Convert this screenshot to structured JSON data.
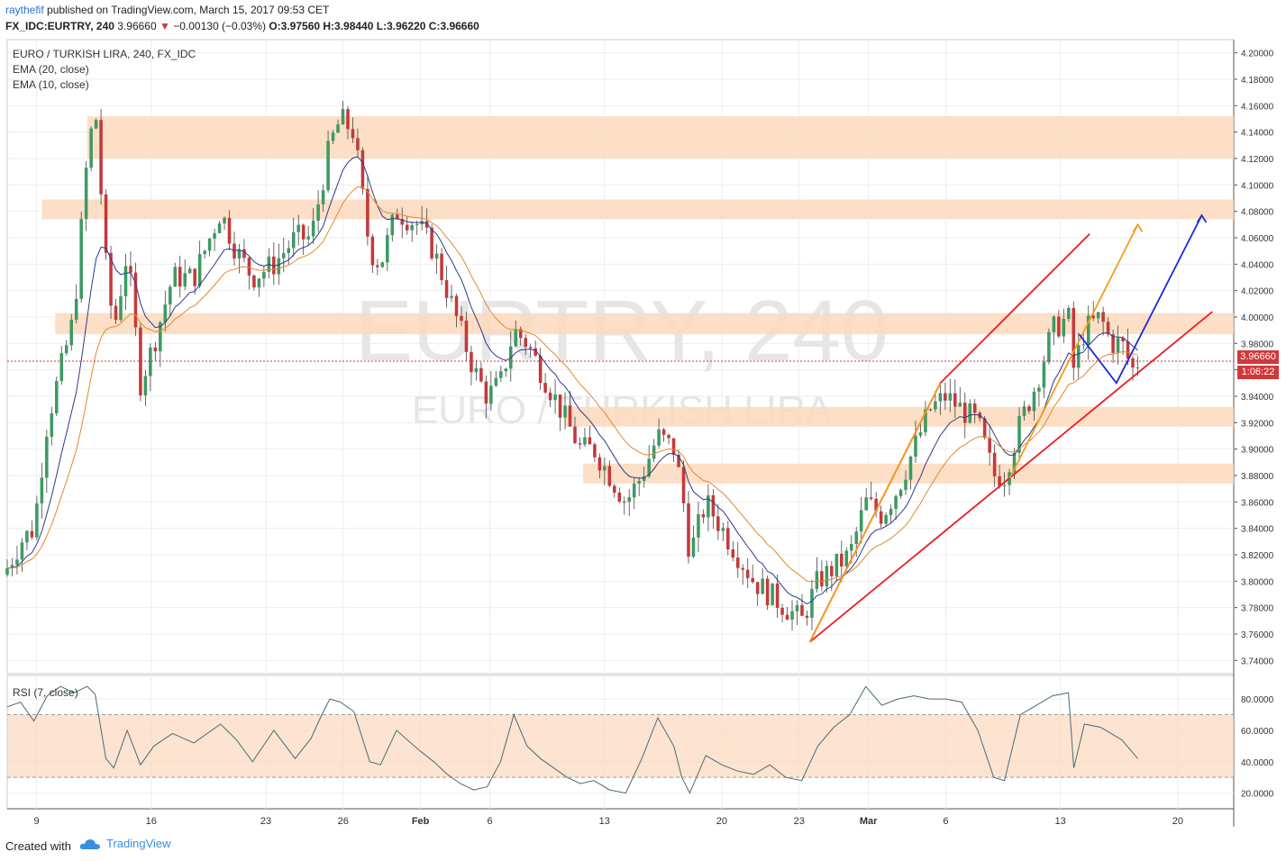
{
  "header": {
    "author": "raythefif",
    "published": "published on TradingView.com, March 15, 2017 09:53 CET",
    "symbol": "FX_IDC:EURTRY, 240",
    "last": "3.96660",
    "change": "−0.00130 (−0.03%)",
    "ohlc": "O:3.97560 H:3.98440 L:3.96220 C:3.96660"
  },
  "legend": {
    "title": "EURO / TURKISH LIRA, 240, FX_IDC",
    "ema20": "EMA (20, close)",
    "ema10": "EMA (10, close)",
    "rsi": "RSI (7, close)"
  },
  "watermark": {
    "big": "EURTRY, 240",
    "small": "EURO / TURKISH LIRA"
  },
  "price_tag": {
    "price": "3.96660",
    "timer": "1:06:22"
  },
  "footer": {
    "created": "Created with",
    "brand": "TradingView"
  },
  "colors": {
    "up": "#3d9a63",
    "down": "#c4393a",
    "ema10": "#2d3a8c",
    "ema20": "#e08a2e",
    "zone": "#fbd9bc",
    "red_line": "#ee1c24",
    "orange_line": "#f59b1e",
    "blue_line": "#1a2bd6",
    "rsi": "#4a6b76"
  },
  "chart_data": [
    {
      "type": "candlestick",
      "title": "EURO / TURKISH LIRA, 240, FX_IDC",
      "ylim": [
        3.73,
        4.21
      ],
      "y_ticks": [
        "3.74000",
        "3.76000",
        "3.78000",
        "3.80000",
        "3.82000",
        "3.84000",
        "3.86000",
        "3.88000",
        "3.90000",
        "3.92000",
        "3.94000",
        "3.96000",
        "3.98000",
        "4.00000",
        "4.02000",
        "4.04000",
        "4.06000",
        "4.08000",
        "4.10000",
        "4.12000",
        "4.14000",
        "4.16000",
        "4.18000",
        "4.20000"
      ],
      "x_ticks": [
        "9",
        "16",
        "23",
        "26",
        "Feb",
        "6",
        "13",
        "20",
        "23",
        "Mar",
        "6",
        "13",
        "20"
      ],
      "bars_index_range": [
        0,
        229
      ],
      "x_tick_index": [
        11,
        54,
        97,
        126,
        155,
        181,
        224,
        268,
        297,
        323,
        352,
        395,
        439
      ],
      "support_resistance_zones": [
        {
          "low": 4.12,
          "high": 4.152,
          "from": 30
        },
        {
          "low": 4.074,
          "high": 4.089,
          "from": 13
        },
        {
          "low": 3.987,
          "high": 4.003,
          "from": 18
        },
        {
          "low": 3.917,
          "high": 3.932,
          "from": 209
        },
        {
          "low": 3.874,
          "high": 3.889,
          "from": 216
        }
      ],
      "trendlines": [
        {
          "color": "red",
          "points": [
            [
              301,
              3.754
            ],
            [
              350,
              3.95
            ],
            [
              406,
              4.063
            ]
          ]
        },
        {
          "color": "red",
          "points": [
            [
              301,
              3.754
            ],
            [
              452,
              4.004
            ]
          ]
        },
        {
          "color": "orange",
          "points": [
            [
              301,
              3.754
            ],
            [
              350,
              3.95
            ]
          ]
        },
        {
          "color": "orange",
          "points": [
            [
              376,
              3.878
            ],
            [
              424,
              4.07
            ]
          ]
        },
        {
          "color": "blue",
          "points": [
            [
              402,
              3.987
            ],
            [
              416,
              3.95
            ],
            [
              448,
              4.077
            ]
          ]
        }
      ],
      "close_path": [
        [
          0,
          3.81
        ],
        [
          5,
          3.83
        ],
        [
          10,
          3.84
        ],
        [
          15,
          3.92
        ],
        [
          20,
          3.96
        ],
        [
          25,
          4.0
        ],
        [
          30,
          4.12
        ],
        [
          33,
          4.16
        ],
        [
          37,
          4.04
        ],
        [
          40,
          3.99
        ],
        [
          45,
          4.05
        ],
        [
          50,
          3.95
        ],
        [
          55,
          3.98
        ],
        [
          62,
          4.03
        ],
        [
          70,
          4.03
        ],
        [
          80,
          4.08
        ],
        [
          86,
          4.05
        ],
        [
          92,
          4.03
        ],
        [
          100,
          4.04
        ],
        [
          108,
          4.06
        ],
        [
          114,
          4.06
        ],
        [
          118,
          4.1
        ],
        [
          121,
          4.13
        ],
        [
          125,
          4.15
        ],
        [
          130,
          4.14
        ],
        [
          136,
          4.05
        ],
        [
          140,
          4.04
        ],
        [
          146,
          4.08
        ],
        [
          154,
          4.07
        ],
        [
          160,
          4.05
        ],
        [
          165,
          4.02
        ],
        [
          170,
          3.99
        ],
        [
          175,
          3.96
        ],
        [
          180,
          3.94
        ],
        [
          185,
          3.95
        ],
        [
          190,
          3.99
        ],
        [
          195,
          3.98
        ],
        [
          200,
          3.96
        ],
        [
          205,
          3.94
        ],
        [
          210,
          3.92
        ],
        [
          215,
          3.9
        ],
        [
          220,
          3.9
        ],
        [
          226,
          3.88
        ],
        [
          232,
          3.86
        ],
        [
          238,
          3.88
        ],
        [
          244,
          3.91
        ],
        [
          250,
          3.9
        ],
        [
          253,
          3.87
        ],
        [
          256,
          3.82
        ],
        [
          262,
          3.86
        ],
        [
          268,
          3.84
        ],
        [
          274,
          3.82
        ],
        [
          280,
          3.8
        ],
        [
          286,
          3.79
        ],
        [
          292,
          3.78
        ],
        [
          298,
          3.77
        ],
        [
          304,
          3.8
        ],
        [
          310,
          3.81
        ],
        [
          316,
          3.82
        ],
        [
          322,
          3.86
        ],
        [
          328,
          3.85
        ],
        [
          334,
          3.87
        ],
        [
          340,
          3.9
        ],
        [
          346,
          3.93
        ],
        [
          352,
          3.94
        ],
        [
          358,
          3.93
        ],
        [
          364,
          3.92
        ],
        [
          370,
          3.88
        ],
        [
          374,
          3.88
        ],
        [
          380,
          3.92
        ],
        [
          386,
          3.95
        ],
        [
          392,
          3.99
        ],
        [
          398,
          4.0
        ],
        [
          400,
          3.96
        ],
        [
          404,
          3.99
        ],
        [
          410,
          4.0
        ],
        [
          414,
          3.98
        ],
        [
          418,
          3.98
        ],
        [
          422,
          3.96
        ],
        [
          424,
          3.966
        ]
      ],
      "rsi": {
        "ylim": [
          10,
          95
        ],
        "y_ticks": [
          "20.0000",
          "40.0000",
          "60.0000",
          "80.0000"
        ],
        "band": [
          30,
          70
        ],
        "path": [
          [
            0,
            75
          ],
          [
            5,
            78
          ],
          [
            10,
            66
          ],
          [
            15,
            82
          ],
          [
            20,
            88
          ],
          [
            25,
            84
          ],
          [
            30,
            88
          ],
          [
            33,
            83
          ],
          [
            37,
            42
          ],
          [
            40,
            36
          ],
          [
            45,
            60
          ],
          [
            50,
            38
          ],
          [
            55,
            50
          ],
          [
            62,
            58
          ],
          [
            70,
            52
          ],
          [
            80,
            64
          ],
          [
            86,
            54
          ],
          [
            92,
            40
          ],
          [
            100,
            60
          ],
          [
            108,
            42
          ],
          [
            114,
            55
          ],
          [
            118,
            70
          ],
          [
            121,
            80
          ],
          [
            125,
            78
          ],
          [
            130,
            72
          ],
          [
            136,
            40
          ],
          [
            140,
            38
          ],
          [
            146,
            60
          ],
          [
            154,
            48
          ],
          [
            160,
            40
          ],
          [
            165,
            32
          ],
          [
            170,
            26
          ],
          [
            175,
            22
          ],
          [
            180,
            24
          ],
          [
            185,
            40
          ],
          [
            190,
            70
          ],
          [
            195,
            50
          ],
          [
            200,
            42
          ],
          [
            205,
            36
          ],
          [
            210,
            30
          ],
          [
            215,
            26
          ],
          [
            220,
            28
          ],
          [
            226,
            22
          ],
          [
            232,
            20
          ],
          [
            238,
            42
          ],
          [
            244,
            68
          ],
          [
            250,
            50
          ],
          [
            253,
            30
          ],
          [
            256,
            20
          ],
          [
            262,
            44
          ],
          [
            268,
            38
          ],
          [
            274,
            34
          ],
          [
            280,
            32
          ],
          [
            286,
            38
          ],
          [
            292,
            30
          ],
          [
            298,
            28
          ],
          [
            304,
            50
          ],
          [
            310,
            62
          ],
          [
            316,
            70
          ],
          [
            322,
            88
          ],
          [
            328,
            76
          ],
          [
            334,
            80
          ],
          [
            340,
            82
          ],
          [
            346,
            80
          ],
          [
            352,
            80
          ],
          [
            358,
            78
          ],
          [
            364,
            60
          ],
          [
            370,
            30
          ],
          [
            374,
            28
          ],
          [
            380,
            70
          ],
          [
            386,
            76
          ],
          [
            392,
            82
          ],
          [
            398,
            84
          ],
          [
            400,
            36
          ],
          [
            404,
            64
          ],
          [
            410,
            62
          ],
          [
            414,
            58
          ],
          [
            418,
            54
          ],
          [
            422,
            46
          ],
          [
            424,
            42
          ]
        ]
      }
    }
  ]
}
